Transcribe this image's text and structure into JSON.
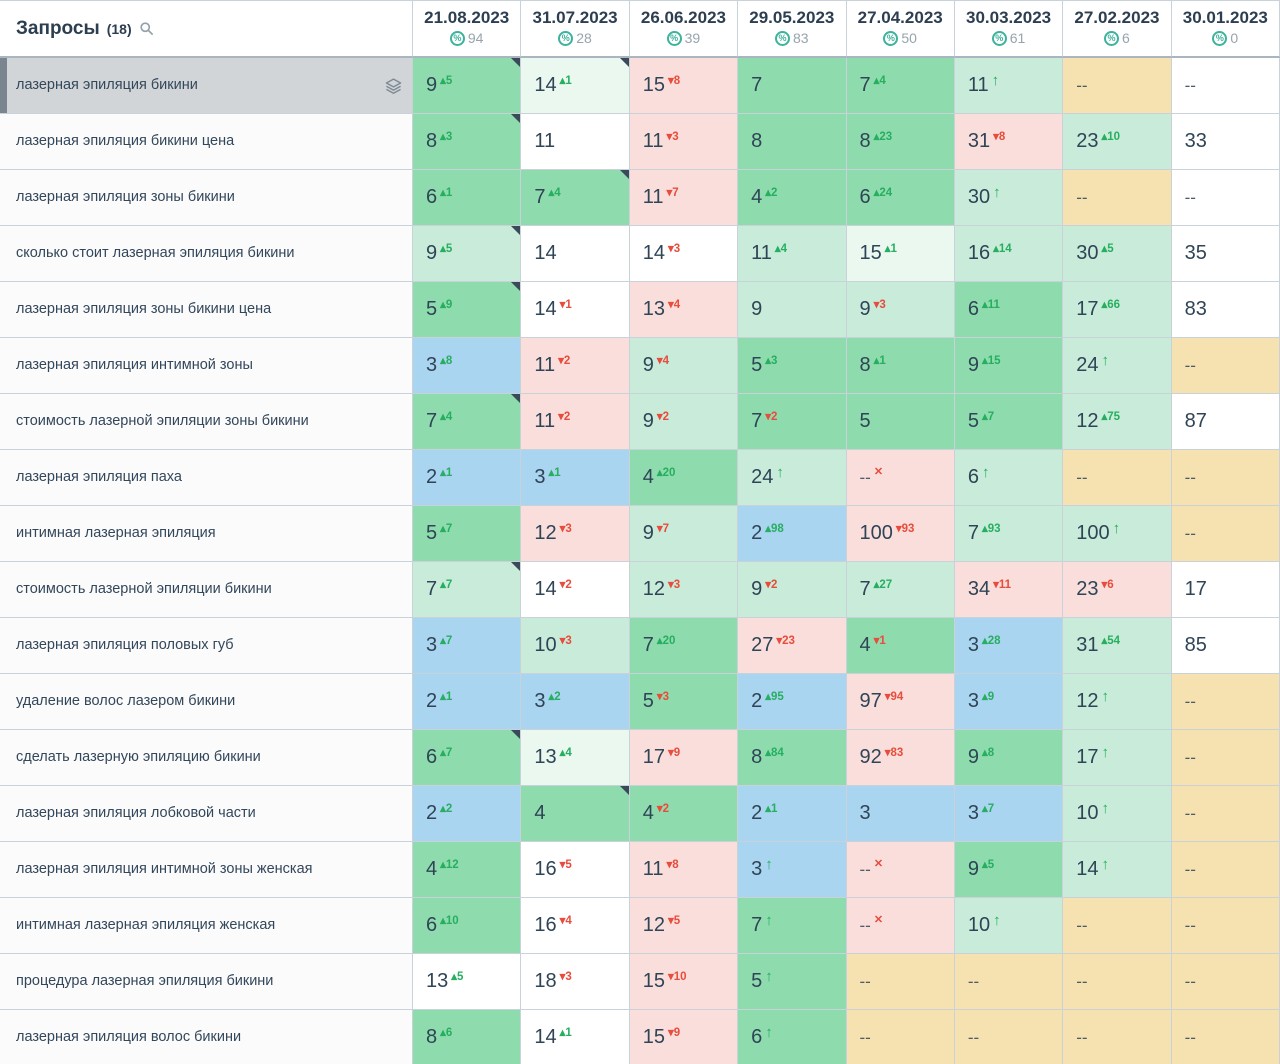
{
  "header": {
    "queries_label": "Запросы",
    "queries_count": "(18)"
  },
  "columns": [
    {
      "date": "21.08.2023",
      "percent": "94"
    },
    {
      "date": "31.07.2023",
      "percent": "28"
    },
    {
      "date": "26.06.2023",
      "percent": "39"
    },
    {
      "date": "29.05.2023",
      "percent": "83"
    },
    {
      "date": "27.04.2023",
      "percent": "50"
    },
    {
      "date": "30.03.2023",
      "percent": "61"
    },
    {
      "date": "27.02.2023",
      "percent": "6"
    },
    {
      "date": "30.01.2023",
      "percent": "0"
    }
  ],
  "colors": {
    "blue": "#a9d5f0",
    "green": "#8edcad",
    "green_light": "#c8ecd9",
    "green_pale": "#eaf8f0",
    "pink": "#fadedb",
    "beige": "#f6e2b0",
    "white": "#ffffff",
    "delta_up": "#27ae60",
    "delta_down": "#e74c3c",
    "selected_row_bg": "#d2d5d8"
  },
  "rows": [
    {
      "keyword": "лазерная эпиляция бикини",
      "selected": true,
      "cells": [
        {
          "v": "9",
          "d": "5",
          "dir": "up",
          "bg": "green",
          "flag": true
        },
        {
          "v": "14",
          "d": "1",
          "dir": "up",
          "bg": "green_pale",
          "flag": true
        },
        {
          "v": "15",
          "d": "8",
          "dir": "down",
          "bg": "pink"
        },
        {
          "v": "7",
          "bg": "green"
        },
        {
          "v": "7",
          "d": "4",
          "dir": "up",
          "bg": "green"
        },
        {
          "v": "11",
          "dir": "new",
          "bg": "green_light"
        },
        {
          "v": "--",
          "bg": "beige"
        },
        {
          "v": "--",
          "bg": "white"
        }
      ]
    },
    {
      "keyword": "лазерная эпиляция бикини цена",
      "cells": [
        {
          "v": "8",
          "d": "3",
          "dir": "up",
          "bg": "green",
          "flag": true
        },
        {
          "v": "11",
          "bg": "white"
        },
        {
          "v": "11",
          "d": "3",
          "dir": "down",
          "bg": "pink"
        },
        {
          "v": "8",
          "bg": "green"
        },
        {
          "v": "8",
          "d": "23",
          "dir": "up",
          "bg": "green"
        },
        {
          "v": "31",
          "d": "8",
          "dir": "down",
          "bg": "pink"
        },
        {
          "v": "23",
          "d": "10",
          "dir": "up",
          "bg": "green_light"
        },
        {
          "v": "33",
          "bg": "white"
        }
      ]
    },
    {
      "keyword": "лазерная эпиляция зоны бикини",
      "cells": [
        {
          "v": "6",
          "d": "1",
          "dir": "up",
          "bg": "green"
        },
        {
          "v": "7",
          "d": "4",
          "dir": "up",
          "bg": "green",
          "flag": true
        },
        {
          "v": "11",
          "d": "7",
          "dir": "down",
          "bg": "pink"
        },
        {
          "v": "4",
          "d": "2",
          "dir": "up",
          "bg": "green"
        },
        {
          "v": "6",
          "d": "24",
          "dir": "up",
          "bg": "green"
        },
        {
          "v": "30",
          "dir": "new",
          "bg": "green_light"
        },
        {
          "v": "--",
          "bg": "beige"
        },
        {
          "v": "--",
          "bg": "white"
        }
      ]
    },
    {
      "keyword": "сколько стоит лазерная эпиляция бикини",
      "cells": [
        {
          "v": "9",
          "d": "5",
          "dir": "up",
          "bg": "green_light",
          "flag": true
        },
        {
          "v": "14",
          "bg": "white"
        },
        {
          "v": "14",
          "d": "3",
          "dir": "down",
          "bg": "white"
        },
        {
          "v": "11",
          "d": "4",
          "dir": "up",
          "bg": "green_light"
        },
        {
          "v": "15",
          "d": "1",
          "dir": "up",
          "bg": "green_pale"
        },
        {
          "v": "16",
          "d": "14",
          "dir": "up",
          "bg": "green_light"
        },
        {
          "v": "30",
          "d": "5",
          "dir": "up",
          "bg": "green_light"
        },
        {
          "v": "35",
          "bg": "white"
        }
      ]
    },
    {
      "keyword": "лазерная эпиляция зоны бикини цена",
      "cells": [
        {
          "v": "5",
          "d": "9",
          "dir": "up",
          "bg": "green",
          "flag": true
        },
        {
          "v": "14",
          "d": "1",
          "dir": "down",
          "bg": "white"
        },
        {
          "v": "13",
          "d": "4",
          "dir": "down",
          "bg": "pink"
        },
        {
          "v": "9",
          "bg": "green_light"
        },
        {
          "v": "9",
          "d": "3",
          "dir": "down",
          "bg": "green_light"
        },
        {
          "v": "6",
          "d": "11",
          "dir": "up",
          "bg": "green"
        },
        {
          "v": "17",
          "d": "66",
          "dir": "up",
          "bg": "green_light"
        },
        {
          "v": "83",
          "bg": "white"
        }
      ]
    },
    {
      "keyword": "лазерная эпиляция интимной зоны",
      "cells": [
        {
          "v": "3",
          "d": "8",
          "dir": "up",
          "bg": "blue"
        },
        {
          "v": "11",
          "d": "2",
          "dir": "down",
          "bg": "pink"
        },
        {
          "v": "9",
          "d": "4",
          "dir": "down",
          "bg": "green_light"
        },
        {
          "v": "5",
          "d": "3",
          "dir": "up",
          "bg": "green"
        },
        {
          "v": "8",
          "d": "1",
          "dir": "up",
          "bg": "green"
        },
        {
          "v": "9",
          "d": "15",
          "dir": "up",
          "bg": "green"
        },
        {
          "v": "24",
          "dir": "new",
          "bg": "green_light"
        },
        {
          "v": "--",
          "bg": "beige"
        }
      ]
    },
    {
      "keyword": "стоимость лазерной эпиляции зоны бикини",
      "cells": [
        {
          "v": "7",
          "d": "4",
          "dir": "up",
          "bg": "green",
          "flag": true
        },
        {
          "v": "11",
          "d": "2",
          "dir": "down",
          "bg": "pink"
        },
        {
          "v": "9",
          "d": "2",
          "dir": "down",
          "bg": "green_light"
        },
        {
          "v": "7",
          "d": "2",
          "dir": "down",
          "bg": "green"
        },
        {
          "v": "5",
          "bg": "green"
        },
        {
          "v": "5",
          "d": "7",
          "dir": "up",
          "bg": "green"
        },
        {
          "v": "12",
          "d": "75",
          "dir": "up",
          "bg": "green_light"
        },
        {
          "v": "87",
          "bg": "white"
        }
      ]
    },
    {
      "keyword": "лазерная эпиляция паха",
      "cells": [
        {
          "v": "2",
          "d": "1",
          "dir": "up",
          "bg": "blue"
        },
        {
          "v": "3",
          "d": "1",
          "dir": "up",
          "bg": "blue"
        },
        {
          "v": "4",
          "d": "20",
          "dir": "up",
          "bg": "green"
        },
        {
          "v": "24",
          "dir": "new",
          "bg": "green_light"
        },
        {
          "v": "--",
          "dir": "lost",
          "bg": "pink"
        },
        {
          "v": "6",
          "dir": "new",
          "bg": "green_light"
        },
        {
          "v": "--",
          "bg": "beige"
        },
        {
          "v": "--",
          "bg": "beige"
        }
      ]
    },
    {
      "keyword": "интимная лазерная эпиляция",
      "cells": [
        {
          "v": "5",
          "d": "7",
          "dir": "up",
          "bg": "green"
        },
        {
          "v": "12",
          "d": "3",
          "dir": "down",
          "bg": "pink"
        },
        {
          "v": "9",
          "d": "7",
          "dir": "down",
          "bg": "green_light"
        },
        {
          "v": "2",
          "d": "98",
          "dir": "up",
          "bg": "blue"
        },
        {
          "v": "100",
          "d": "93",
          "dir": "down",
          "bg": "pink"
        },
        {
          "v": "7",
          "d": "93",
          "dir": "up",
          "bg": "green_light"
        },
        {
          "v": "100",
          "dir": "new",
          "bg": "green_light"
        },
        {
          "v": "--",
          "bg": "beige"
        }
      ]
    },
    {
      "keyword": "стоимость лазерной эпиляции бикини",
      "cells": [
        {
          "v": "7",
          "d": "7",
          "dir": "up",
          "bg": "green_light",
          "flag": true
        },
        {
          "v": "14",
          "d": "2",
          "dir": "down",
          "bg": "white"
        },
        {
          "v": "12",
          "d": "3",
          "dir": "down",
          "bg": "green_light"
        },
        {
          "v": "9",
          "d": "2",
          "dir": "down",
          "bg": "green_light"
        },
        {
          "v": "7",
          "d": "27",
          "dir": "up",
          "bg": "green_light"
        },
        {
          "v": "34",
          "d": "11",
          "dir": "down",
          "bg": "pink"
        },
        {
          "v": "23",
          "d": "6",
          "dir": "down",
          "bg": "pink"
        },
        {
          "v": "17",
          "bg": "white"
        }
      ]
    },
    {
      "keyword": "лазерная эпиляция половых губ",
      "cells": [
        {
          "v": "3",
          "d": "7",
          "dir": "up",
          "bg": "blue"
        },
        {
          "v": "10",
          "d": "3",
          "dir": "down",
          "bg": "green_light"
        },
        {
          "v": "7",
          "d": "20",
          "dir": "up",
          "bg": "green"
        },
        {
          "v": "27",
          "d": "23",
          "dir": "down",
          "bg": "pink"
        },
        {
          "v": "4",
          "d": "1",
          "dir": "down",
          "bg": "green"
        },
        {
          "v": "3",
          "d": "28",
          "dir": "up",
          "bg": "blue"
        },
        {
          "v": "31",
          "d": "54",
          "dir": "up",
          "bg": "green_light"
        },
        {
          "v": "85",
          "bg": "white"
        }
      ]
    },
    {
      "keyword": "удаление волос лазером бикини",
      "cells": [
        {
          "v": "2",
          "d": "1",
          "dir": "up",
          "bg": "blue"
        },
        {
          "v": "3",
          "d": "2",
          "dir": "up",
          "bg": "blue"
        },
        {
          "v": "5",
          "d": "3",
          "dir": "down",
          "bg": "green"
        },
        {
          "v": "2",
          "d": "95",
          "dir": "up",
          "bg": "blue"
        },
        {
          "v": "97",
          "d": "94",
          "dir": "down",
          "bg": "pink"
        },
        {
          "v": "3",
          "d": "9",
          "dir": "up",
          "bg": "blue"
        },
        {
          "v": "12",
          "dir": "new",
          "bg": "green_light"
        },
        {
          "v": "--",
          "bg": "beige"
        }
      ]
    },
    {
      "keyword": "сделать лазерную эпиляцию бикини",
      "cells": [
        {
          "v": "6",
          "d": "7",
          "dir": "up",
          "bg": "green",
          "flag": true
        },
        {
          "v": "13",
          "d": "4",
          "dir": "up",
          "bg": "green_pale"
        },
        {
          "v": "17",
          "d": "9",
          "dir": "down",
          "bg": "pink"
        },
        {
          "v": "8",
          "d": "84",
          "dir": "up",
          "bg": "green"
        },
        {
          "v": "92",
          "d": "83",
          "dir": "down",
          "bg": "pink"
        },
        {
          "v": "9",
          "d": "8",
          "dir": "up",
          "bg": "green"
        },
        {
          "v": "17",
          "dir": "new",
          "bg": "green_light"
        },
        {
          "v": "--",
          "bg": "beige"
        }
      ]
    },
    {
      "keyword": "лазерная эпиляция лобковой части",
      "cells": [
        {
          "v": "2",
          "d": "2",
          "dir": "up",
          "bg": "blue"
        },
        {
          "v": "4",
          "bg": "green",
          "flag": true
        },
        {
          "v": "4",
          "d": "2",
          "dir": "down",
          "bg": "green"
        },
        {
          "v": "2",
          "d": "1",
          "dir": "up",
          "bg": "blue"
        },
        {
          "v": "3",
          "bg": "blue"
        },
        {
          "v": "3",
          "d": "7",
          "dir": "up",
          "bg": "blue"
        },
        {
          "v": "10",
          "dir": "new",
          "bg": "green_light"
        },
        {
          "v": "--",
          "bg": "beige"
        }
      ]
    },
    {
      "keyword": "лазерная эпиляция интимной зоны женская",
      "cells": [
        {
          "v": "4",
          "d": "12",
          "dir": "up",
          "bg": "green"
        },
        {
          "v": "16",
          "d": "5",
          "dir": "down",
          "bg": "white"
        },
        {
          "v": "11",
          "d": "8",
          "dir": "down",
          "bg": "pink"
        },
        {
          "v": "3",
          "dir": "new",
          "bg": "blue"
        },
        {
          "v": "--",
          "dir": "lost",
          "bg": "pink"
        },
        {
          "v": "9",
          "d": "5",
          "dir": "up",
          "bg": "green"
        },
        {
          "v": "14",
          "dir": "new",
          "bg": "green_light"
        },
        {
          "v": "--",
          "bg": "beige"
        }
      ]
    },
    {
      "keyword": "интимная лазерная эпиляция женская",
      "cells": [
        {
          "v": "6",
          "d": "10",
          "dir": "up",
          "bg": "green"
        },
        {
          "v": "16",
          "d": "4",
          "dir": "down",
          "bg": "white"
        },
        {
          "v": "12",
          "d": "5",
          "dir": "down",
          "bg": "pink"
        },
        {
          "v": "7",
          "dir": "new",
          "bg": "green"
        },
        {
          "v": "--",
          "dir": "lost",
          "bg": "pink"
        },
        {
          "v": "10",
          "dir": "new",
          "bg": "green_light"
        },
        {
          "v": "--",
          "bg": "beige"
        },
        {
          "v": "--",
          "bg": "beige"
        }
      ]
    },
    {
      "keyword": "процедура лазерная эпиляция бикини",
      "cells": [
        {
          "v": "13",
          "d": "5",
          "dir": "up",
          "bg": "white"
        },
        {
          "v": "18",
          "d": "3",
          "dir": "down",
          "bg": "white"
        },
        {
          "v": "15",
          "d": "10",
          "dir": "down",
          "bg": "pink"
        },
        {
          "v": "5",
          "dir": "new",
          "bg": "green"
        },
        {
          "v": "--",
          "bg": "beige"
        },
        {
          "v": "--",
          "bg": "beige"
        },
        {
          "v": "--",
          "bg": "beige"
        },
        {
          "v": "--",
          "bg": "beige"
        }
      ]
    },
    {
      "keyword": "лазерная эпиляция волос бикини",
      "cells": [
        {
          "v": "8",
          "d": "6",
          "dir": "up",
          "bg": "green"
        },
        {
          "v": "14",
          "d": "1",
          "dir": "up",
          "bg": "white"
        },
        {
          "v": "15",
          "d": "9",
          "dir": "down",
          "bg": "pink"
        },
        {
          "v": "6",
          "dir": "new",
          "bg": "green"
        },
        {
          "v": "--",
          "bg": "beige"
        },
        {
          "v": "--",
          "bg": "beige"
        },
        {
          "v": "--",
          "bg": "beige"
        },
        {
          "v": "--",
          "bg": "beige"
        }
      ]
    }
  ]
}
